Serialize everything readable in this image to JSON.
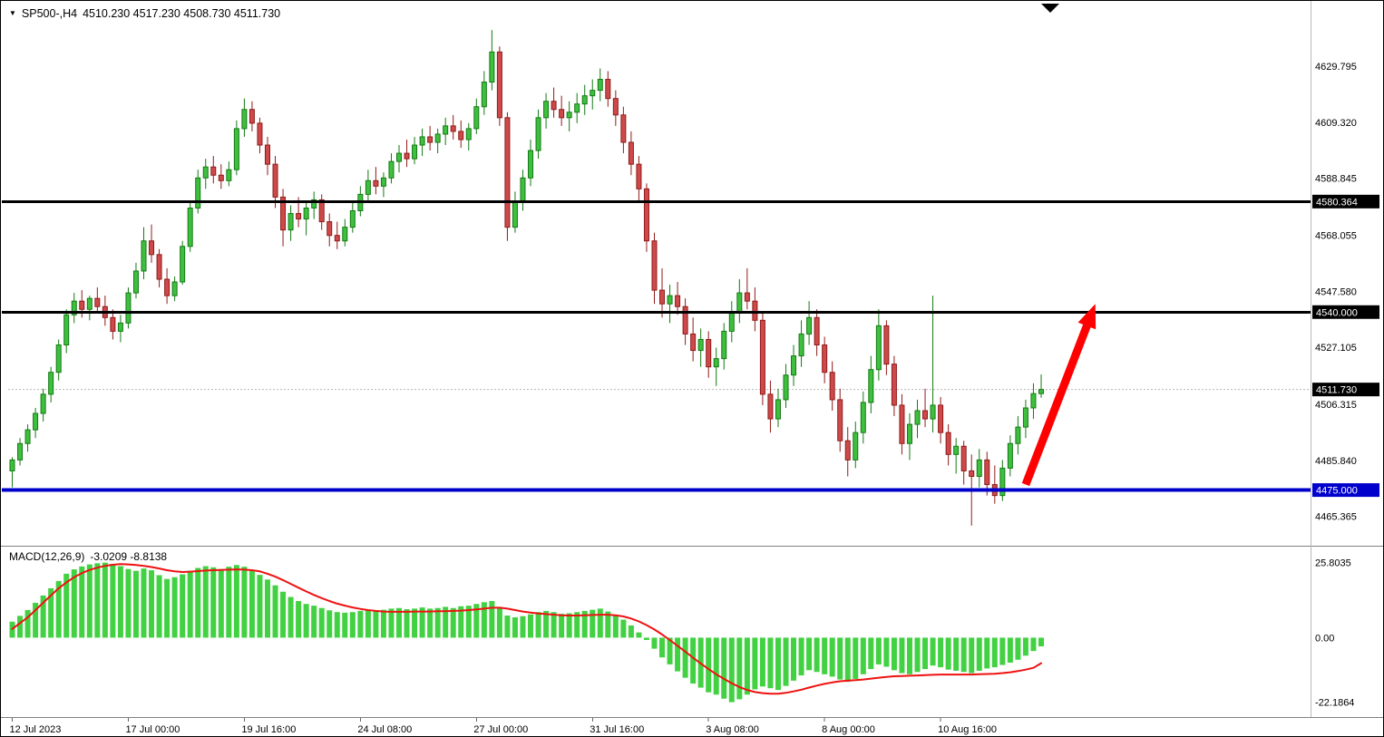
{
  "header": {
    "symbol": "SP500-,H4",
    "ohlc_values": "4510.230 4517.230 4508.730 4511.730"
  },
  "colors": {
    "bull": "#3FBF3F",
    "bull_border": "#127A12",
    "bear": "#CE4A4A",
    "bear_border": "#8F1A1A",
    "macd_histogram": "#42D142",
    "macd_signal": "#EE1111",
    "support_line": "#0000CC",
    "resistance_line": "#000000",
    "arrow": "#FF0000",
    "current_price_line": "#B8B8B8",
    "axis_text": "#000000",
    "badge_text": "#FFFFFF"
  },
  "chart_data": {
    "type": "candlestick",
    "title": "SP500-,H4",
    "timeframe": "H4",
    "price_range": [
      4455,
      4651
    ],
    "y_axis_labels": [
      {
        "text": "4629.795",
        "value": 4629.795,
        "style": "normal"
      },
      {
        "text": "4609.320",
        "value": 4609.32,
        "style": "normal"
      },
      {
        "text": "4588.845",
        "value": 4588.845,
        "style": "normal"
      },
      {
        "text": "4580.364",
        "value": 4580.364,
        "style": "black-badge"
      },
      {
        "text": "4568.055",
        "value": 4568.055,
        "style": "normal"
      },
      {
        "text": "4547.580",
        "value": 4547.58,
        "style": "normal"
      },
      {
        "text": "4540.000",
        "value": 4540.0,
        "style": "black-badge"
      },
      {
        "text": "4527.105",
        "value": 4527.105,
        "style": "normal"
      },
      {
        "text": "4511.730",
        "value": 4511.73,
        "style": "black-badge"
      },
      {
        "text": "4506.315",
        "value": 4506.315,
        "style": "normal"
      },
      {
        "text": "4485.840",
        "value": 4485.84,
        "style": "normal"
      },
      {
        "text": "4475.000",
        "value": 4475.0,
        "style": "blue-badge"
      },
      {
        "text": "4465.365",
        "value": 4465.365,
        "style": "normal"
      }
    ],
    "x_labels": [
      {
        "index": 0,
        "text": "12 Jul 2023"
      },
      {
        "index": 15,
        "text": "17 Jul 00:00"
      },
      {
        "index": 30,
        "text": "19 Jul 16:00"
      },
      {
        "index": 45,
        "text": "24 Jul 08:00"
      },
      {
        "index": 60,
        "text": "27 Jul 00:00"
      },
      {
        "index": 75,
        "text": "31 Jul 16:00"
      },
      {
        "index": 90,
        "text": "3 Aug 08:00"
      },
      {
        "index": 105,
        "text": "8 Aug 00:00"
      },
      {
        "index": 120,
        "text": "10 Aug 16:00"
      }
    ],
    "hlines": [
      {
        "price": 4580.364,
        "label": "4580.364",
        "color": "#000000",
        "width": 3,
        "role": "resistance"
      },
      {
        "price": 4540.0,
        "label": "4540.000",
        "color": "#000000",
        "width": 3,
        "role": "resistance"
      },
      {
        "price": 4475.0,
        "label": "4475.000",
        "color": "#0000CC",
        "width": 4,
        "role": "support"
      }
    ],
    "current_price": {
      "value": 4511.73,
      "label": "4511.730"
    },
    "arrow": {
      "from": {
        "index": 131,
        "price": 4477
      },
      "to": {
        "index": 140,
        "price": 4543
      },
      "color": "#FF0000"
    },
    "candles": [
      [
        4482,
        4487,
        4476,
        4486
      ],
      [
        4486,
        4494,
        4484,
        4492
      ],
      [
        4492,
        4499,
        4489,
        4497
      ],
      [
        4497,
        4505,
        4494,
        4503
      ],
      [
        4503,
        4512,
        4500,
        4510
      ],
      [
        4510,
        4520,
        4507,
        4518
      ],
      [
        4518,
        4530,
        4515,
        4528
      ],
      [
        4528,
        4541,
        4525,
        4539
      ],
      [
        4539,
        4547,
        4536,
        4544
      ],
      [
        4544,
        4548,
        4538,
        4541
      ],
      [
        4541,
        4546,
        4537,
        4545
      ],
      [
        4545,
        4549,
        4540,
        4542
      ],
      [
        4542,
        4546,
        4535,
        4538
      ],
      [
        4538,
        4541,
        4530,
        4533
      ],
      [
        4533,
        4539,
        4529,
        4536
      ],
      [
        4536,
        4549,
        4534,
        4547
      ],
      [
        4547,
        4558,
        4545,
        4555
      ],
      [
        4555,
        4571,
        4552,
        4566
      ],
      [
        4566,
        4572,
        4558,
        4561
      ],
      [
        4561,
        4563,
        4549,
        4552
      ],
      [
        4552,
        4556,
        4543,
        4546
      ],
      [
        4546,
        4553,
        4544,
        4551
      ],
      [
        4551,
        4566,
        4550,
        4564
      ],
      [
        4564,
        4580,
        4562,
        4578
      ],
      [
        4578,
        4592,
        4576,
        4589
      ],
      [
        4589,
        4596,
        4585,
        4593
      ],
      [
        4593,
        4597,
        4587,
        4590
      ],
      [
        4590,
        4594,
        4585,
        4588
      ],
      [
        4588,
        4595,
        4586,
        4592
      ],
      [
        4592,
        4610,
        4590,
        4607
      ],
      [
        4607,
        4618,
        4604,
        4614
      ],
      [
        4614,
        4617,
        4606,
        4609
      ],
      [
        4609,
        4611,
        4598,
        4601
      ],
      [
        4601,
        4604,
        4590,
        4594
      ],
      [
        4594,
        4597,
        4578,
        4582
      ],
      [
        4582,
        4585,
        4564,
        4570
      ],
      [
        4570,
        4579,
        4566,
        4576
      ],
      [
        4576,
        4582,
        4571,
        4574
      ],
      [
        4574,
        4580,
        4568,
        4578
      ],
      [
        4578,
        4584,
        4574,
        4581
      ],
      [
        4581,
        4583,
        4570,
        4573
      ],
      [
        4573,
        4576,
        4564,
        4568
      ],
      [
        4568,
        4573,
        4563,
        4566
      ],
      [
        4566,
        4574,
        4564,
        4571
      ],
      [
        4571,
        4580,
        4569,
        4577
      ],
      [
        4577,
        4586,
        4575,
        4583
      ],
      [
        4583,
        4592,
        4580,
        4588
      ],
      [
        4588,
        4593,
        4583,
        4586
      ],
      [
        4586,
        4591,
        4582,
        4589
      ],
      [
        4589,
        4598,
        4587,
        4595
      ],
      [
        4595,
        4601,
        4591,
        4598
      ],
      [
        4598,
        4603,
        4593,
        4596
      ],
      [
        4596,
        4604,
        4594,
        4601
      ],
      [
        4601,
        4607,
        4597,
        4604
      ],
      [
        4604,
        4608,
        4599,
        4602
      ],
      [
        4602,
        4607,
        4598,
        4605
      ],
      [
        4605,
        4611,
        4601,
        4608
      ],
      [
        4608,
        4612,
        4603,
        4606
      ],
      [
        4606,
        4610,
        4600,
        4603
      ],
      [
        4603,
        4609,
        4599,
        4607
      ],
      [
        4607,
        4618,
        4605,
        4615
      ],
      [
        4615,
        4628,
        4612,
        4624
      ],
      [
        4624,
        4643,
        4621,
        4635
      ],
      [
        4635,
        4637,
        4608,
        4611
      ],
      [
        4611,
        4613,
        4566,
        4571
      ],
      [
        4571,
        4584,
        4569,
        4580
      ],
      [
        4580,
        4592,
        4577,
        4589
      ],
      [
        4589,
        4603,
        4586,
        4599
      ],
      [
        4599,
        4614,
        4596,
        4611
      ],
      [
        4611,
        4620,
        4607,
        4617
      ],
      [
        4617,
        4622,
        4611,
        4614
      ],
      [
        4614,
        4619,
        4608,
        4611
      ],
      [
        4611,
        4617,
        4606,
        4613
      ],
      [
        4613,
        4620,
        4609,
        4616
      ],
      [
        4616,
        4623,
        4612,
        4619
      ],
      [
        4619,
        4625,
        4614,
        4621
      ],
      [
        4621,
        4629,
        4617,
        4625
      ],
      [
        4625,
        4628,
        4615,
        4618
      ],
      [
        4618,
        4621,
        4608,
        4612
      ],
      [
        4612,
        4615,
        4598,
        4602
      ],
      [
        4602,
        4606,
        4590,
        4594
      ],
      [
        4594,
        4597,
        4580,
        4585
      ],
      [
        4585,
        4587,
        4562,
        4566
      ],
      [
        4566,
        4569,
        4543,
        4548
      ],
      [
        4548,
        4556,
        4538,
        4543
      ],
      [
        4543,
        4550,
        4536,
        4546
      ],
      [
        4546,
        4551,
        4539,
        4542
      ],
      [
        4542,
        4545,
        4528,
        4532
      ],
      [
        4532,
        4538,
        4522,
        4526
      ],
      [
        4526,
        4534,
        4520,
        4530
      ],
      [
        4530,
        4533,
        4516,
        4520
      ],
      [
        4520,
        4527,
        4513,
        4523
      ],
      [
        4523,
        4536,
        4519,
        4533
      ],
      [
        4533,
        4544,
        4529,
        4540
      ],
      [
        4540,
        4552,
        4536,
        4547
      ],
      [
        4547,
        4556,
        4541,
        4544
      ],
      [
        4544,
        4549,
        4533,
        4537
      ],
      [
        4537,
        4540,
        4506,
        4510
      ],
      [
        4510,
        4515,
        4496,
        4501
      ],
      [
        4501,
        4512,
        4498,
        4508
      ],
      [
        4508,
        4521,
        4505,
        4517
      ],
      [
        4517,
        4528,
        4513,
        4524
      ],
      [
        4524,
        4537,
        4520,
        4532
      ],
      [
        4532,
        4544,
        4528,
        4538
      ],
      [
        4538,
        4541,
        4524,
        4528
      ],
      [
        4528,
        4531,
        4514,
        4518
      ],
      [
        4518,
        4522,
        4504,
        4508
      ],
      [
        4508,
        4512,
        4489,
        4493
      ],
      [
        4493,
        4498,
        4480,
        4486
      ],
      [
        4486,
        4500,
        4483,
        4496
      ],
      [
        4496,
        4511,
        4492,
        4507
      ],
      [
        4507,
        4524,
        4503,
        4519
      ],
      [
        4519,
        4541,
        4515,
        4535
      ],
      [
        4535,
        4537,
        4517,
        4521
      ],
      [
        4521,
        4524,
        4502,
        4506
      ],
      [
        4506,
        4510,
        4488,
        4492
      ],
      [
        4492,
        4503,
        4486,
        4499
      ],
      [
        4499,
        4508,
        4494,
        4504
      ],
      [
        4504,
        4512,
        4498,
        4501
      ],
      [
        4501,
        4546,
        4496,
        4506
      ],
      [
        4506,
        4509,
        4492,
        4496
      ],
      [
        4496,
        4499,
        4484,
        4488
      ],
      [
        4488,
        4494,
        4481,
        4491
      ],
      [
        4491,
        4493,
        4477,
        4482
      ],
      [
        4482,
        4488,
        4462,
        4480
      ],
      [
        4480,
        4490,
        4476,
        4486
      ],
      [
        4486,
        4489,
        4473,
        4477
      ],
      [
        4477,
        4484,
        4470,
        4473
      ],
      [
        4473,
        4486,
        4471,
        4483
      ],
      [
        4483,
        4495,
        4480,
        4492
      ],
      [
        4492,
        4502,
        4488,
        4498
      ],
      [
        4498,
        4508,
        4494,
        4505
      ],
      [
        4505,
        4514,
        4501,
        4510.23
      ],
      [
        4510.23,
        4517.23,
        4508.73,
        4511.73
      ]
    ],
    "macd": {
      "label": "MACD(12,26,9)",
      "values_text": "-3.0209 -8.8138",
      "range": [
        -26.7,
        30.7
      ],
      "axis_labels": [
        {
          "text": "25.8035",
          "value": 25.8035
        },
        {
          "text": "0.00",
          "value": 0
        },
        {
          "text": "-22.1864",
          "value": -22.1864
        }
      ],
      "histogram": [
        5.5,
        7.5,
        9.5,
        12,
        14.5,
        17,
        19.5,
        22,
        23.5,
        24.5,
        25.2,
        25.6,
        25.8,
        25.4,
        24.6,
        23.6,
        23.0,
        23.8,
        23.2,
        21.5,
        20.2,
        20.8,
        21.8,
        23.0,
        24.0,
        24.6,
        24.2,
        23.6,
        24.4,
        25.0,
        24.4,
        23.2,
        21.6,
        20.0,
        18.0,
        15.8,
        14.0,
        12.6,
        11.6,
        11.0,
        10.2,
        9.4,
        8.8,
        8.6,
        8.8,
        9.2,
        9.6,
        9.4,
        9.6,
        10.0,
        10.2,
        9.8,
        10.0,
        10.4,
        10.0,
        10.2,
        10.6,
        10.2,
        10.8,
        11.0,
        11.6,
        12.2,
        12.6,
        10.6,
        7.6,
        7.0,
        7.4,
        8.0,
        8.8,
        9.2,
        8.8,
        8.2,
        8.4,
        8.8,
        9.2,
        9.6,
        10.0,
        9.0,
        7.8,
        6.2,
        4.2,
        1.8,
        -0.8,
        -3.8,
        -6.8,
        -9.2,
        -11.6,
        -13.8,
        -15.8,
        -17.2,
        -18.8,
        -19.6,
        -21.0,
        -22.2,
        -21.2,
        -19.6,
        -17.8,
        -16.8,
        -17.4,
        -18.0,
        -16.6,
        -14.8,
        -13.0,
        -11.2,
        -11.8,
        -12.6,
        -13.4,
        -14.4,
        -15.2,
        -14.2,
        -12.6,
        -10.8,
        -9.2,
        -10.0,
        -11.2,
        -12.2,
        -12.6,
        -11.8,
        -10.8,
        -9.6,
        -10.2,
        -11.0,
        -11.4,
        -11.8,
        -12.2,
        -11.4,
        -10.6,
        -10.2,
        -9.4,
        -8.6,
        -7.6,
        -6.2,
        -4.6,
        -3.0
      ],
      "signal": [
        3.0,
        5.0,
        7.0,
        9.5,
        12.0,
        14.5,
        17.0,
        19.0,
        20.8,
        22.2,
        23.3,
        24.1,
        24.7,
        25.1,
        25.3,
        25.2,
        25.0,
        24.7,
        24.3,
        23.8,
        23.2,
        22.8,
        22.6,
        22.7,
        22.9,
        23.1,
        23.2,
        23.3,
        23.4,
        23.5,
        23.4,
        23.2,
        22.8,
        22.0,
        21.0,
        19.8,
        18.5,
        17.2,
        15.9,
        14.7,
        13.6,
        12.6,
        11.7,
        11.0,
        10.4,
        9.9,
        9.5,
        9.2,
        9.0,
        8.9,
        8.9,
        8.9,
        9.0,
        9.0,
        9.0,
        9.1,
        9.1,
        9.2,
        9.3,
        9.5,
        9.7,
        10.0,
        10.3,
        10.3,
        10.0,
        9.5,
        9.0,
        8.6,
        8.3,
        8.1,
        7.9,
        7.7,
        7.6,
        7.6,
        7.7,
        7.8,
        7.9,
        7.9,
        7.7,
        7.3,
        6.6,
        5.6,
        4.3,
        2.8,
        1.1,
        -0.8,
        -2.8,
        -4.8,
        -6.9,
        -8.9,
        -10.8,
        -12.6,
        -14.2,
        -15.7,
        -17.0,
        -18.0,
        -18.7,
        -19.1,
        -19.3,
        -19.3,
        -19.0,
        -18.5,
        -17.9,
        -17.2,
        -16.5,
        -15.9,
        -15.4,
        -15.0,
        -14.8,
        -14.6,
        -14.4,
        -14.1,
        -13.8,
        -13.5,
        -13.3,
        -13.2,
        -13.1,
        -13.0,
        -12.9,
        -12.8,
        -12.7,
        -12.7,
        -12.7,
        -12.7,
        -12.7,
        -12.6,
        -12.5,
        -12.4,
        -12.2,
        -11.9,
        -11.5,
        -11.0,
        -10.4,
        -8.8
      ]
    }
  }
}
